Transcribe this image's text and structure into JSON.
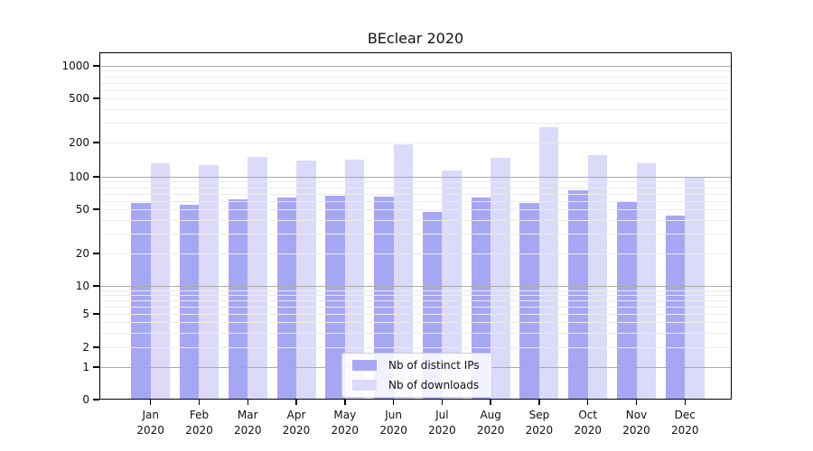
{
  "chart_data": {
    "type": "bar",
    "title": "BEclear 2020",
    "categories": [
      "Jan 2020",
      "Feb 2020",
      "Mar 2020",
      "Apr 2020",
      "May 2020",
      "Jun 2020",
      "Jul 2020",
      "Aug 2020",
      "Sep 2020",
      "Oct 2020",
      "Nov 2020",
      "Dec 2020"
    ],
    "series": [
      {
        "name": "Nb of distinct IPs",
        "color": "#a7a6f3",
        "values": [
          57,
          55,
          62,
          64,
          67,
          66,
          47,
          64,
          57,
          75,
          58,
          44
        ]
      },
      {
        "name": "Nb of downloads",
        "color": "#dbdaf9",
        "values": [
          132,
          127,
          150,
          140,
          142,
          193,
          114,
          147,
          274,
          154,
          132,
          100
        ]
      }
    ],
    "y_axis": {
      "scale": "symlog",
      "tick_values": [
        0,
        1,
        2,
        5,
        10,
        20,
        50,
        100,
        200,
        500,
        1000
      ],
      "tick_labels": [
        "0",
        "1",
        "2",
        "5",
        "10",
        "20",
        "50",
        "100",
        "200",
        "500",
        "1000"
      ],
      "ylim": [
        0,
        1400
      ]
    },
    "xlabel": "",
    "ylabel": "",
    "grid": true,
    "legend_position": "lower center"
  },
  "colors": {
    "bar_ips": "#a7a6f3",
    "bar_downloads": "#dbdaf9",
    "grid_major": "#a9a9a9",
    "grid_minor": "#ebebeb",
    "spine": "#000000",
    "text": "#111111",
    "legend_border": "#cccccc",
    "background": "#ffffff"
  }
}
